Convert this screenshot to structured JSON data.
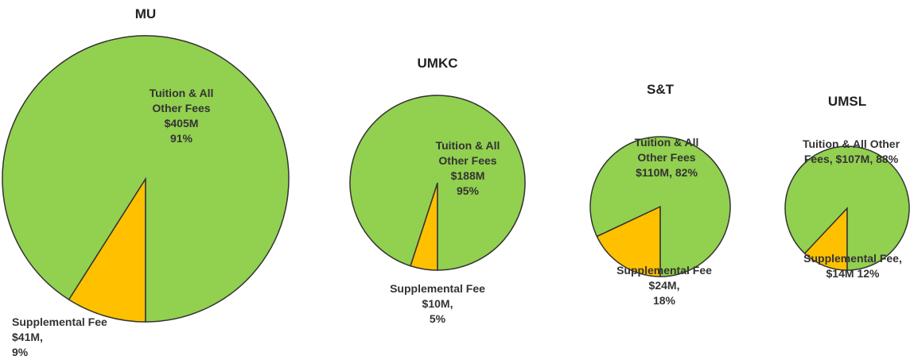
{
  "chart_data": [
    {
      "type": "pie",
      "title": "MU",
      "categories": [
        "Tuition & All Other Fees",
        "Supplemental Fee"
      ],
      "values": [
        91,
        9
      ],
      "value_labels": [
        "91%",
        "9%"
      ],
      "amounts": [
        405,
        41
      ],
      "amount_labels": [
        "$405M",
        "$41M"
      ],
      "colors": [
        "#92d050",
        "#ffc000"
      ]
    },
    {
      "type": "pie",
      "title": "UMKC",
      "categories": [
        "Tuition & All Other Fees",
        "Supplemental Fee"
      ],
      "values": [
        95,
        5
      ],
      "value_labels": [
        "95%",
        "5%"
      ],
      "amounts": [
        188,
        10
      ],
      "amount_labels": [
        "$188M",
        "$10M"
      ],
      "colors": [
        "#92d050",
        "#ffc000"
      ]
    },
    {
      "type": "pie",
      "title": "S&T",
      "categories": [
        "Tuition & All Other Fees",
        "Supplemental Fee"
      ],
      "values": [
        82,
        18
      ],
      "value_labels": [
        "82%",
        "18%"
      ],
      "amounts": [
        110,
        24
      ],
      "amount_labels": [
        "$110M",
        "$24M"
      ],
      "colors": [
        "#92d050",
        "#ffc000"
      ]
    },
    {
      "type": "pie",
      "title": "UMSL",
      "categories": [
        "Tuition & All Other Fees",
        "Supplemental Fee"
      ],
      "values": [
        88,
        12
      ],
      "value_labels": [
        "88%",
        "12%"
      ],
      "amounts": [
        107,
        14
      ],
      "amount_labels": [
        "$107M",
        "$14M"
      ],
      "colors": [
        "#92d050",
        "#ffc000"
      ]
    }
  ]
}
